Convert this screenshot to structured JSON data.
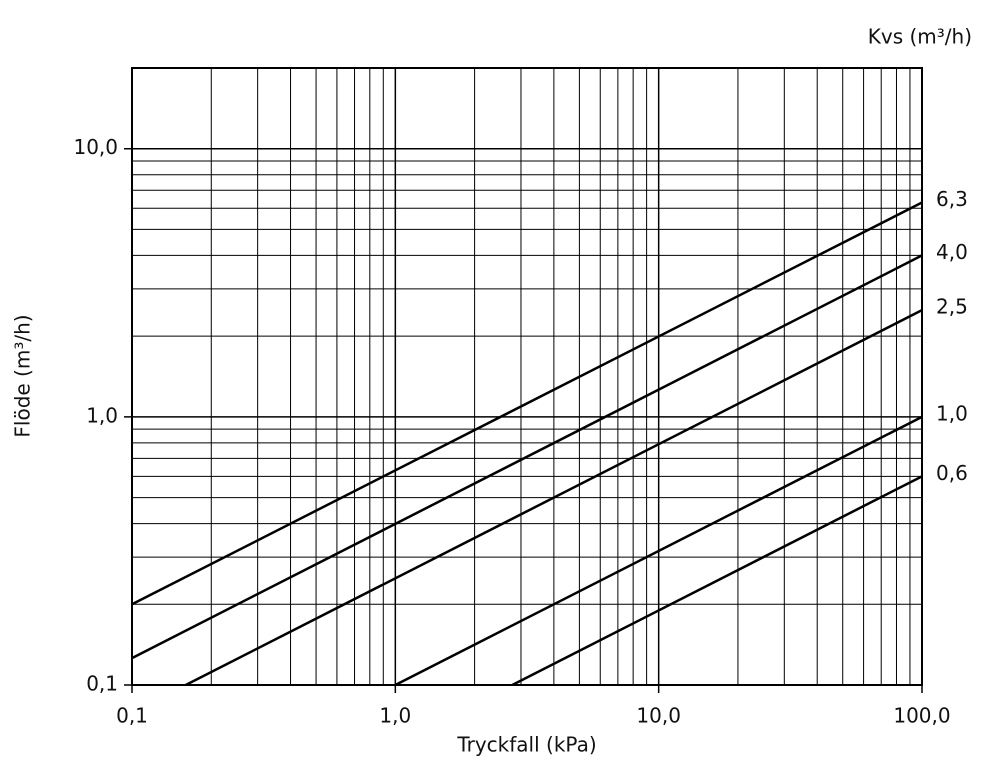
{
  "chart_data": {
    "type": "line",
    "x_label": "Tryckfall (kPa)",
    "y_label": "Flöde  (m³/h)",
    "legend_title": "Kvs (m³/h)",
    "log_x": true,
    "log_y": true,
    "color": "#000000",
    "xlim": [
      0.1,
      100
    ],
    "ylim": [
      0.1,
      20
    ],
    "xticks": [
      {
        "value": 0.1,
        "label": "0,1"
      },
      {
        "value": 1,
        "label": "1,0"
      },
      {
        "value": 10,
        "label": "10,0"
      },
      {
        "value": 100,
        "label": "100,0"
      }
    ],
    "yticks": [
      {
        "value": 0.1,
        "label": "0,1"
      },
      {
        "value": 1,
        "label": "1,0"
      },
      {
        "value": 10,
        "label": "10,0"
      }
    ],
    "x_grid": [
      0.2,
      0.3,
      0.4,
      0.5,
      0.6,
      0.7,
      0.8,
      0.9,
      2,
      3,
      4,
      5,
      6,
      7,
      8,
      9,
      20,
      30,
      40,
      50,
      60,
      70,
      80,
      90
    ],
    "y_grid": [
      0.2,
      0.3,
      0.4,
      0.5,
      0.6,
      0.7,
      0.8,
      0.9,
      2,
      3,
      4,
      5,
      6,
      7,
      8,
      9
    ],
    "series": [
      {
        "name": "6,3",
        "x": [
          0.1,
          100
        ],
        "values": [
          0.2,
          6.3
        ]
      },
      {
        "name": "4,0",
        "x": [
          0.1,
          100
        ],
        "values": [
          0.126,
          4.0
        ]
      },
      {
        "name": "2,5",
        "x": [
          0.16,
          100
        ],
        "values": [
          0.1,
          2.5
        ]
      },
      {
        "name": "1,0",
        "x": [
          1.0,
          100
        ],
        "values": [
          0.1,
          1.0
        ]
      },
      {
        "name": "0,6",
        "x": [
          2.78,
          100
        ],
        "values": [
          0.1,
          0.6
        ]
      }
    ]
  }
}
